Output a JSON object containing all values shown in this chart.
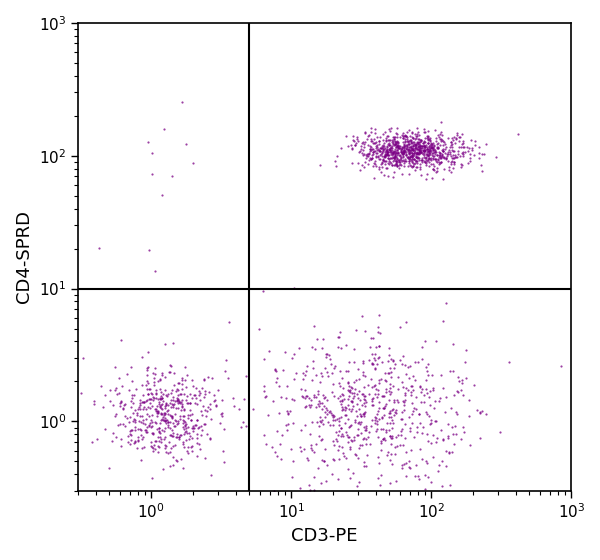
{
  "dot_color": "#7B0085",
  "dot_alpha": 0.75,
  "dot_size": 2.5,
  "xlabel": "CD3-PE",
  "ylabel": "CD4-SPRD",
  "xlim": [
    0.3,
    1000
  ],
  "ylim": [
    0.3,
    1000
  ],
  "quadrant_x": 5.0,
  "quadrant_y": 10.0,
  "clusters": {
    "upper_right": {
      "n": 900,
      "x_mean_log": 1.85,
      "x_std_log": 0.2,
      "y_mean_log": 2.03,
      "y_std_log": 0.07
    },
    "lower_left": {
      "n": 500,
      "x_mean_log": 0.1,
      "x_std_log": 0.2,
      "y_mean_log": 0.05,
      "y_std_log": 0.18
    },
    "lower_right": {
      "n": 700,
      "x_mean_log": 1.55,
      "x_std_log": 0.35,
      "y_mean_log": 0.1,
      "y_std_log": 0.28
    },
    "sparse_upper_left": {
      "n": 12,
      "x_mean_log": 0.2,
      "x_std_log": 0.2,
      "y_mean_log": 1.85,
      "y_std_log": 0.3
    }
  },
  "xtick_positions": [
    1,
    10,
    100,
    1000
  ],
  "ytick_positions": [
    1,
    10,
    100,
    1000
  ],
  "background_color": "#ffffff",
  "line_color": "#000000",
  "line_width": 1.5,
  "axis_fontsize": 13,
  "tick_fontsize": 11
}
